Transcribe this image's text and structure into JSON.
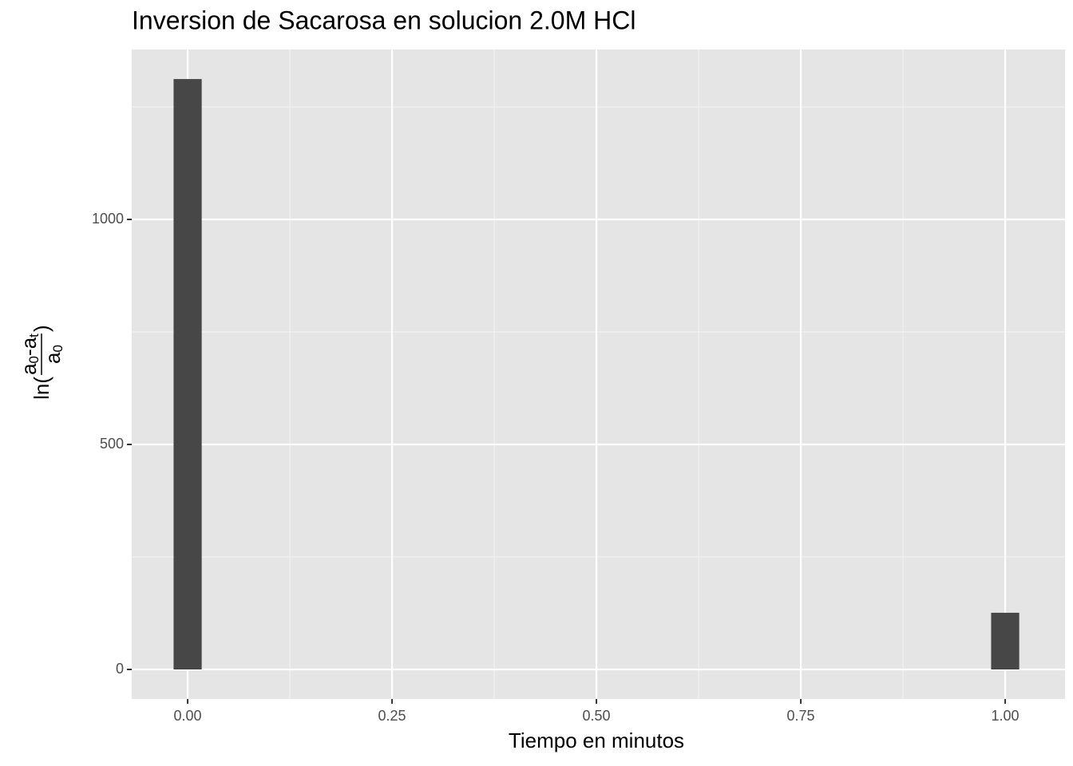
{
  "chart_data": {
    "type": "histogram",
    "title": "Inversion de Sacarosa en solucion 2.0M HCl",
    "xlabel": "Tiempo en minutos",
    "ylabel": {
      "prefix": "ln(",
      "numerator": [
        "a",
        "0",
        "-a",
        "t"
      ],
      "denominator": [
        "a",
        "0"
      ],
      "suffix": ")"
    },
    "bins": [
      -0.0172,
      0.0172,
      0.0517,
      0.0862,
      0.1207,
      0.1552,
      0.1897,
      0.2241,
      0.2586,
      0.2931,
      0.3276,
      0.3621,
      0.3966,
      0.431,
      0.4655,
      0.5,
      0.5345,
      0.569,
      0.6034,
      0.6379,
      0.6724,
      0.7069,
      0.7414,
      0.7759,
      0.8103,
      0.8448,
      0.8793,
      0.9138,
      0.9483,
      0.9828,
      1.0172
    ],
    "values": [
      1312,
      0,
      0,
      0,
      0,
      0,
      0,
      0,
      0,
      0,
      0,
      0,
      0,
      0,
      0,
      0,
      0,
      0,
      0,
      0,
      0,
      0,
      0,
      0,
      0,
      0,
      0,
      0,
      0,
      126
    ],
    "color": "#474747",
    "xlim": [
      -0.0684,
      1.0732
    ],
    "ylim": [
      -65.6,
      1377.7
    ],
    "xticks": [
      {
        "value": 0,
        "label": "0.00"
      },
      {
        "value": 0.25,
        "label": "0.25"
      },
      {
        "value": 0.5,
        "label": "0.50"
      },
      {
        "value": 0.75,
        "label": "0.75"
      },
      {
        "value": 1,
        "label": "1.00"
      }
    ],
    "yticks": [
      0,
      500,
      1000
    ],
    "grid": true
  }
}
